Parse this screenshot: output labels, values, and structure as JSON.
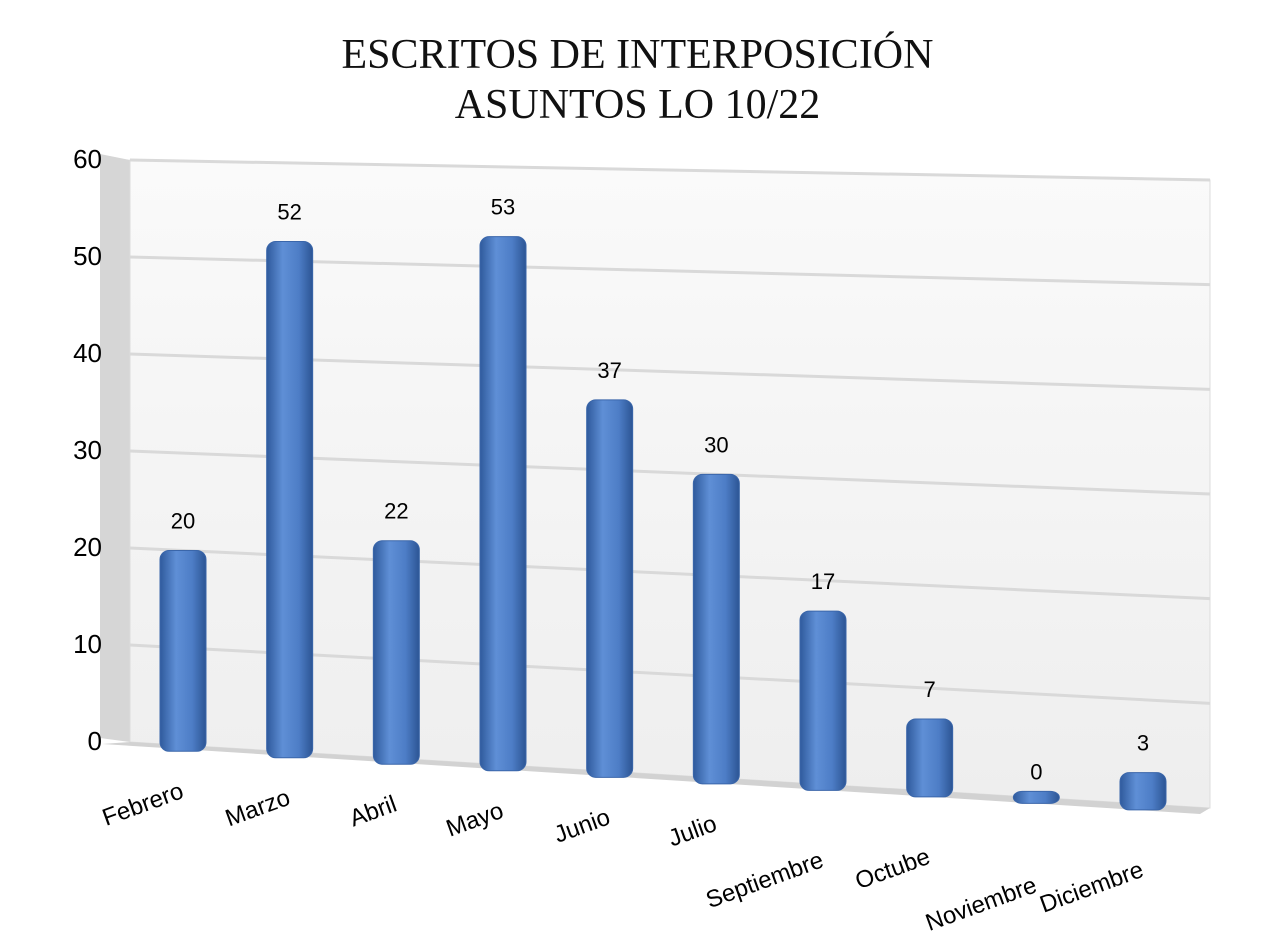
{
  "chart_data": {
    "type": "bar",
    "title": "ESCRITOS DE INTERPOSICIÓN",
    "subtitle": "ASUNTOS LO 10/22",
    "categories": [
      "Febrero",
      "Marzo",
      "Abril",
      "Mayo",
      "Junio",
      "Julio",
      "Septiembre",
      "Octube",
      "Noviembre",
      "Diciembre"
    ],
    "values": [
      20,
      52,
      22,
      53,
      37,
      30,
      17,
      7,
      0,
      3
    ],
    "ylim": [
      0,
      60
    ],
    "yticks": [
      0,
      10,
      20,
      30,
      40,
      50,
      60
    ],
    "grid": true,
    "bar_color": "#4f7fc8",
    "background_color": "#f2f2f2"
  }
}
